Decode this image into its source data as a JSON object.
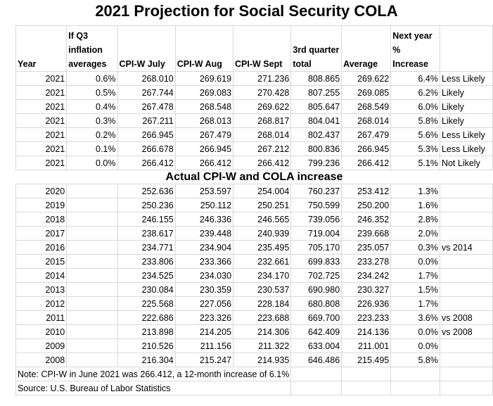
{
  "title": "2021 Projection for Social Security COLA",
  "headers": [
    "Year",
    "If Q3 inflation averages",
    "CPI-W July",
    "CPI-W Aug",
    "CPI-W Sept",
    "3rd quarter total",
    "Average",
    "Next year % Increase",
    ""
  ],
  "projection_rows": [
    [
      "2021",
      "0.6%",
      "268.010",
      "269.619",
      "271.236",
      "808.865",
      "269.622",
      "6.4%",
      "Less Likely"
    ],
    [
      "2021",
      "0.5%",
      "267.744",
      "269.083",
      "270.428",
      "807.255",
      "269.085",
      "6.2%",
      "Likely"
    ],
    [
      "2021",
      "0.4%",
      "267.478",
      "268.548",
      "269.622",
      "805.647",
      "268.549",
      "6.0%",
      "Likely"
    ],
    [
      "2021",
      "0.3%",
      "267.211",
      "268.013",
      "268.817",
      "804.041",
      "268.014",
      "5.8%",
      "Likely"
    ],
    [
      "2021",
      "0.2%",
      "266.945",
      "267.479",
      "268.014",
      "802.437",
      "267.479",
      "5.6%",
      "Less Likely"
    ],
    [
      "2021",
      "0.1%",
      "266.678",
      "266.945",
      "267.212",
      "800.836",
      "266.945",
      "5.3%",
      "Less Likely"
    ],
    [
      "2021",
      "0.0%",
      "266.412",
      "266.412",
      "266.412",
      "799.236",
      "266.412",
      "5.1%",
      "Not Likely"
    ]
  ],
  "section_heading": "Actual CPI-W and COLA increase",
  "actual_rows": [
    [
      "2020",
      "",
      "252.636",
      "253.597",
      "254.004",
      "760.237",
      "253.412",
      "1.3%",
      ""
    ],
    [
      "2019",
      "",
      "250.236",
      "250.112",
      "250.251",
      "750.599",
      "250.200",
      "1.6%",
      ""
    ],
    [
      "2018",
      "",
      "246.155",
      "246.336",
      "246.565",
      "739.056",
      "246.352",
      "2.8%",
      ""
    ],
    [
      "2017",
      "",
      "238.617",
      "239.448",
      "240.939",
      "719.004",
      "239.668",
      "2.0%",
      ""
    ],
    [
      "2016",
      "",
      "234.771",
      "234.904",
      "235.495",
      "705.170",
      "235.057",
      "0.3%",
      "vs 2014"
    ],
    [
      "2015",
      "",
      "233.806",
      "233.366",
      "232.661",
      "699.833",
      "233.278",
      "0.0%",
      ""
    ],
    [
      "2014",
      "",
      "234.525",
      "234.030",
      "234.170",
      "702.725",
      "234.242",
      "1.7%",
      ""
    ],
    [
      "2013",
      "",
      "230.084",
      "230.359",
      "230.537",
      "690.980",
      "230.327",
      "1.5%",
      ""
    ],
    [
      "2012",
      "",
      "225.568",
      "227.056",
      "228.184",
      "680.808",
      "226.936",
      "1.7%",
      ""
    ],
    [
      "2011",
      "",
      "222.686",
      "223.326",
      "223.688",
      "669.700",
      "223.233",
      "3.6%",
      "vs 2008"
    ],
    [
      "2010",
      "",
      "213.898",
      "214.205",
      "214.306",
      "642.409",
      "214.136",
      "0.0%",
      "vs 2008"
    ],
    [
      "2009",
      "",
      "210.526",
      "211.156",
      "211.322",
      "633.004",
      "211.001",
      "0.0%",
      ""
    ],
    [
      "2008",
      "",
      "216.304",
      "215.247",
      "214.935",
      "646.486",
      "215.495",
      "5.8%",
      ""
    ]
  ],
  "note": "Note: CPI-W in June 2021 was 266.412, a 12-month increase of 6.1%",
  "source": "Source: U.S. Bureau of Labor Statistics"
}
